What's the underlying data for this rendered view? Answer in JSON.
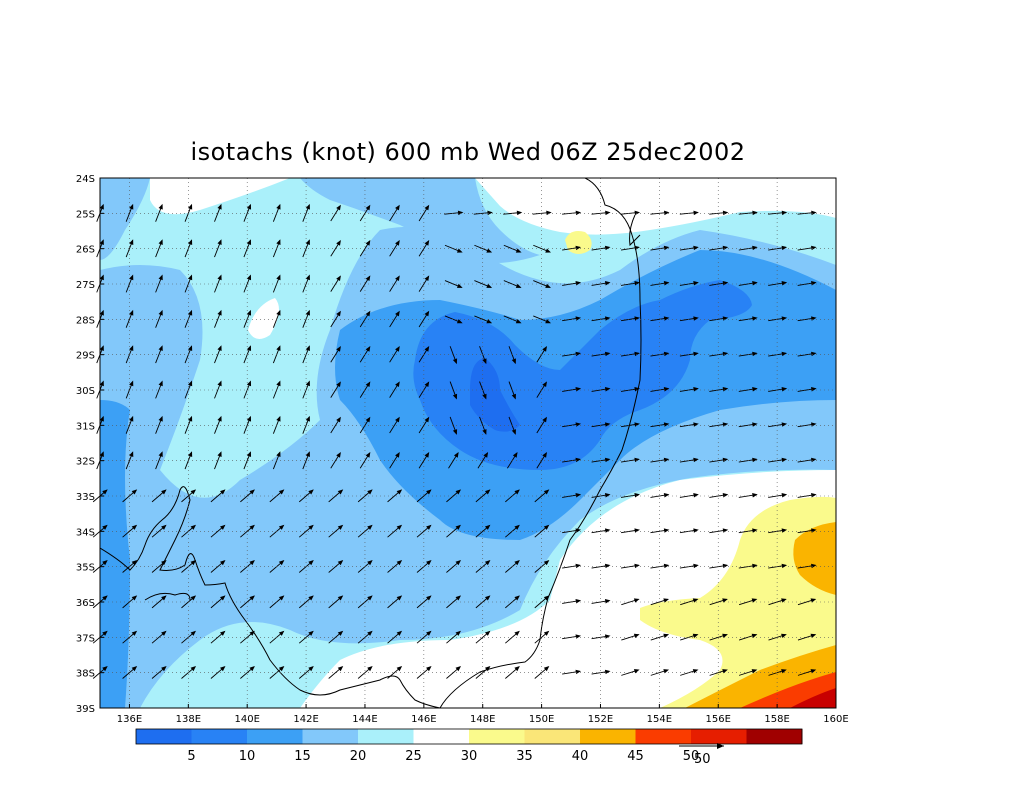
{
  "title": "isotachs (knot) 600 mb Wed 06Z 25dec2002",
  "lat_labels": [
    "24S",
    "25S",
    "26S",
    "27S",
    "28S",
    "29S",
    "30S",
    "31S",
    "32S",
    "33S",
    "34S",
    "35S",
    "36S",
    "37S",
    "38S",
    "39S"
  ],
  "lon_labels": [
    "136E",
    "138E",
    "140E",
    "142E",
    "144E",
    "146E",
    "148E",
    "150E",
    "152E",
    "154E",
    "156E",
    "158E",
    "160E"
  ],
  "colorbar": {
    "colors": [
      "#1e6ef0",
      "#2882f5",
      "#3ca0f5",
      "#82c8fa",
      "#aaf0fa",
      "#ffffff",
      "#fafa8c",
      "#fae678",
      "#fab400",
      "#fa3c00",
      "#e61e00",
      "#a00000"
    ],
    "tick_labels": [
      "5",
      "10",
      "15",
      "20",
      "25",
      "30",
      "35",
      "40",
      "45",
      "50"
    ]
  },
  "vector_key": {
    "label": "50"
  },
  "palette": {
    "c10": "#1e6ef0",
    "c15": "#3ca0f5",
    "c20": "#82c8fa",
    "c25": "#aaf0fa",
    "c30": "#ffffff",
    "c35": "#fafa8c",
    "c40": "#fab400",
    "c45": "#fa3c00",
    "c50": "#c80000"
  }
}
